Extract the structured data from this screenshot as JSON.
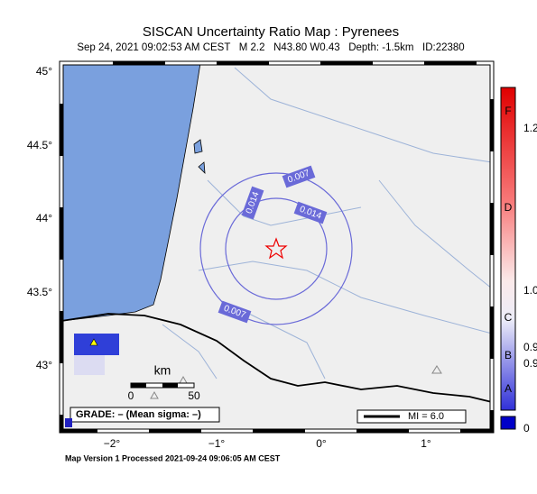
{
  "header": {
    "title": "SISCAN Uncertainty Ratio Map : Pyrenees",
    "subtitle": "Sep 24, 2021 09:02:53 AM CEST   M 2.2   N43.80 W0.43   Depth: -1.5km   ID:22380"
  },
  "axes": {
    "lat_labels": [
      "45°",
      "44.5°",
      "44°",
      "43.5°",
      "43°"
    ],
    "lon_labels": [
      "−2°",
      "−1°",
      "0°",
      "1°"
    ]
  },
  "contours": {
    "labels": [
      "0.007",
      "0.014",
      "0.014",
      "0.007"
    ]
  },
  "scale_bar": {
    "unit": "km",
    "start": "0",
    "end": "50"
  },
  "grade": "GRADE: – (Mean sigma: –)",
  "legend": "MI = 6.0",
  "colorbar": {
    "grades": [
      "F",
      "D",
      "C",
      "B",
      "A"
    ],
    "values": [
      "1.2",
      "1.0",
      "0.9",
      "0.9",
      "0"
    ]
  },
  "footer": "Map Version 1 Processed 2021-09-24 09:06:05 AM CEST"
}
